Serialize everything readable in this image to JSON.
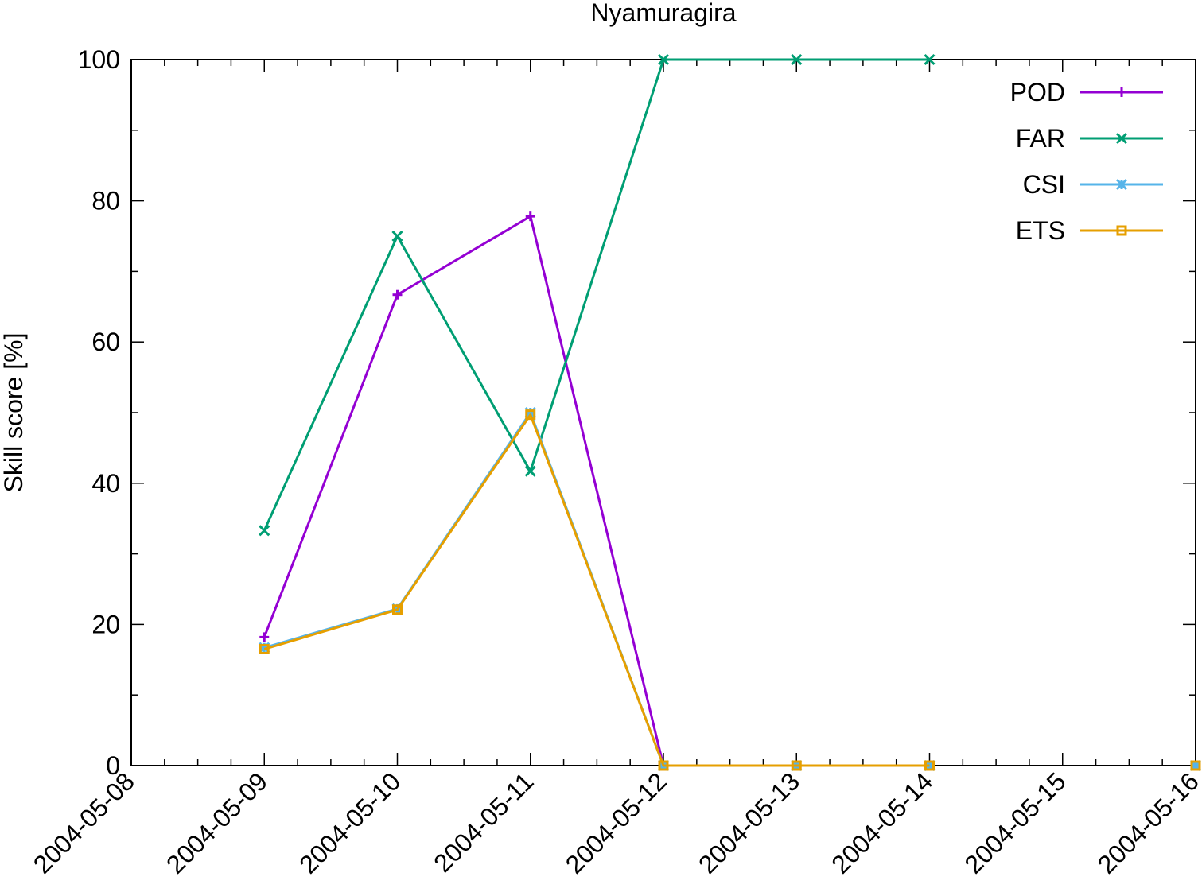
{
  "chart_data": {
    "type": "line",
    "title": "Nyamuragira",
    "xlabel": "",
    "ylabel": "Skill score [%]",
    "x_ticks": [
      "2004-05-08",
      "2004-05-09",
      "2004-05-10",
      "2004-05-11",
      "2004-05-12",
      "2004-05-13",
      "2004-05-14",
      "2004-05-15",
      "2004-05-16"
    ],
    "xlim": [
      "2004-05-08",
      "2004-05-16"
    ],
    "ylim": [
      0,
      100
    ],
    "y_ticks": [
      0,
      20,
      40,
      60,
      80,
      100
    ],
    "grid": false,
    "legend_position": "top-right",
    "series": [
      {
        "name": "POD",
        "color": "#9400d3",
        "marker": "plus",
        "points": [
          {
            "x": "2004-05-09",
            "y": 18.2
          },
          {
            "x": "2004-05-10",
            "y": 66.7
          },
          {
            "x": "2004-05-11",
            "y": 77.8
          },
          {
            "x": "2004-05-12",
            "y": 0
          },
          {
            "x": "2004-05-13",
            "y": 0
          },
          {
            "x": "2004-05-14",
            "y": 0
          },
          {
            "x": "2004-05-16",
            "y": 0
          }
        ]
      },
      {
        "name": "FAR",
        "color": "#009e73",
        "marker": "cross",
        "points": [
          {
            "x": "2004-05-09",
            "y": 33.3
          },
          {
            "x": "2004-05-10",
            "y": 75
          },
          {
            "x": "2004-05-11",
            "y": 41.7
          },
          {
            "x": "2004-05-12",
            "y": 100
          },
          {
            "x": "2004-05-13",
            "y": 100
          },
          {
            "x": "2004-05-14",
            "y": 100
          }
        ]
      },
      {
        "name": "CSI",
        "color": "#56b4e9",
        "marker": "star",
        "points": [
          {
            "x": "2004-05-09",
            "y": 16.7
          },
          {
            "x": "2004-05-10",
            "y": 22.2
          },
          {
            "x": "2004-05-11",
            "y": 50
          },
          {
            "x": "2004-05-12",
            "y": 0
          },
          {
            "x": "2004-05-13",
            "y": 0
          },
          {
            "x": "2004-05-14",
            "y": 0
          },
          {
            "x": "2004-05-16",
            "y": 0
          }
        ]
      },
      {
        "name": "ETS",
        "color": "#e69f00",
        "marker": "square",
        "points": [
          {
            "x": "2004-05-09",
            "y": 16.5
          },
          {
            "x": "2004-05-10",
            "y": 22.1
          },
          {
            "x": "2004-05-11",
            "y": 49.7
          },
          {
            "x": "2004-05-12",
            "y": 0
          },
          {
            "x": "2004-05-13",
            "y": 0
          },
          {
            "x": "2004-05-14",
            "y": 0
          },
          {
            "x": "2004-05-16",
            "y": 0
          }
        ]
      }
    ]
  }
}
